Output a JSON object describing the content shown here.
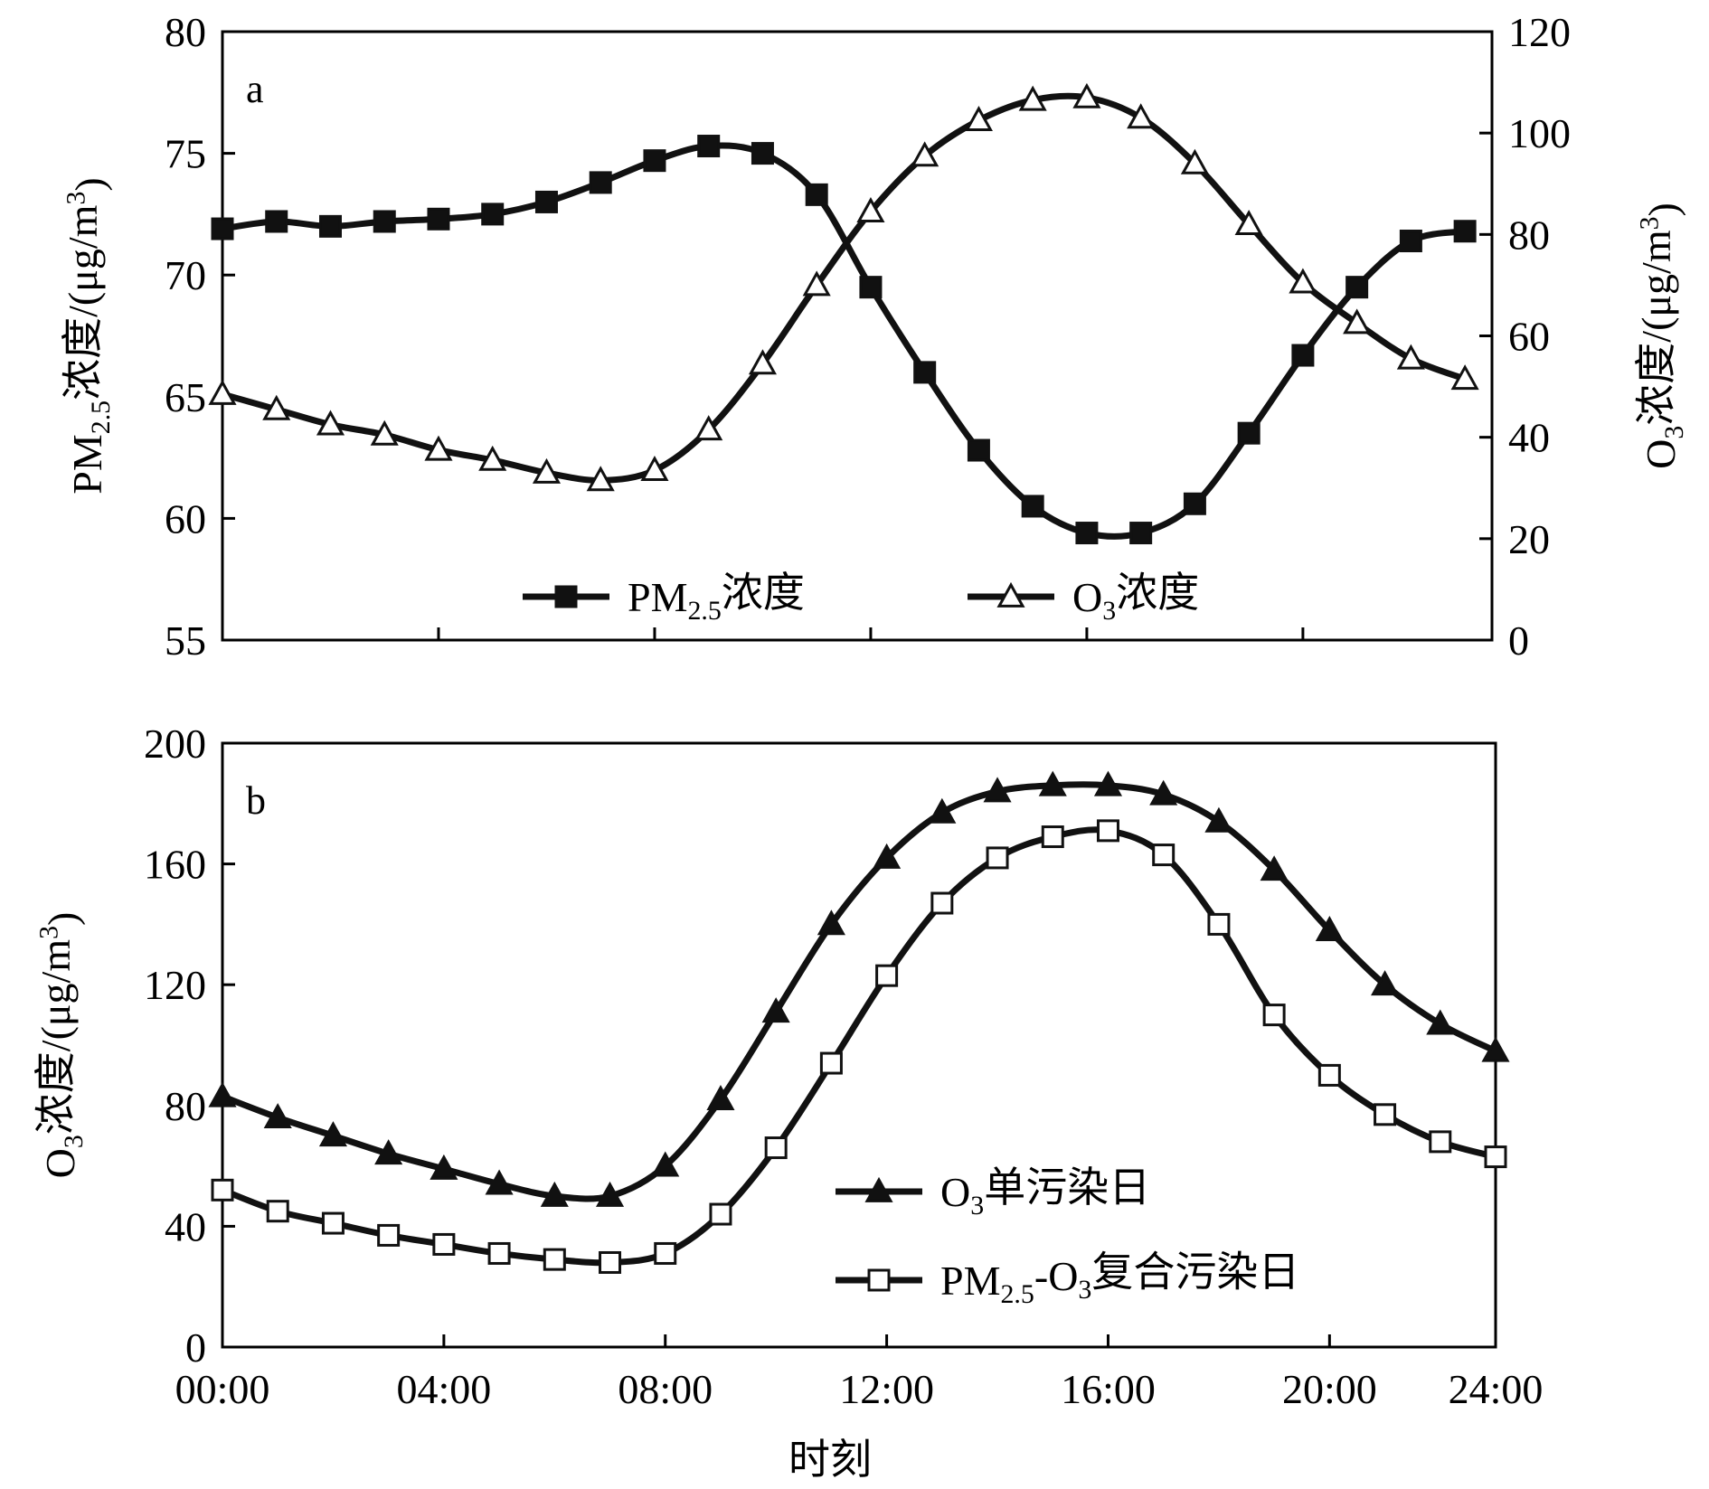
{
  "chart_data": [
    {
      "panel": "a",
      "type": "line",
      "x": [
        0,
        1,
        2,
        3,
        4,
        5,
        6,
        7,
        8,
        9,
        10,
        11,
        12,
        13,
        14,
        15,
        16,
        17,
        18,
        19,
        20,
        21,
        22,
        23
      ],
      "xlim": [
        0,
        23.5
      ],
      "xticks": [
        4,
        8,
        12,
        16,
        20
      ],
      "ylabel_left": "PM2.5浓度/(μg/m3)",
      "ylabel_right": "O3浓度/(μg/m3)",
      "ylim_left": [
        55,
        80
      ],
      "ylim_right": [
        0,
        120
      ],
      "yticks_left": [
        "55",
        "60",
        "65",
        "70",
        "75",
        "80"
      ],
      "yticks_right": [
        "0",
        "20",
        "40",
        "60",
        "80",
        "100",
        "120"
      ],
      "legend_position": "bottom-center",
      "grid": false,
      "series": [
        {
          "name": "PM2.5浓度",
          "axis": "left",
          "marker": "filled-square",
          "values": [
            71.9,
            72.2,
            72.0,
            72.2,
            72.3,
            72.5,
            73.0,
            73.8,
            74.7,
            75.3,
            75.0,
            73.3,
            69.5,
            66.0,
            62.8,
            60.5,
            59.4,
            59.4,
            60.6,
            63.5,
            66.7,
            69.5,
            71.4,
            71.8
          ]
        },
        {
          "name": "O3浓度",
          "axis": "right",
          "marker": "open-triangle",
          "values": [
            48.5,
            45.5,
            42.5,
            40.5,
            37.5,
            35.5,
            33.0,
            31.5,
            33.5,
            41.5,
            54.5,
            70.0,
            84.5,
            95.5,
            102.5,
            106.5,
            107.0,
            103.0,
            94.0,
            82.0,
            70.5,
            62.5,
            55.5,
            51.5
          ]
        }
      ]
    },
    {
      "panel": "b",
      "type": "line",
      "x": [
        0,
        1,
        2,
        3,
        4,
        5,
        6,
        7,
        8,
        9,
        10,
        11,
        12,
        13,
        14,
        15,
        16,
        17,
        18,
        19,
        20,
        21,
        22,
        23
      ],
      "xlim": [
        0,
        23
      ],
      "xticks": [
        0,
        4,
        8,
        12,
        16,
        20,
        23
      ],
      "xtick_labels": [
        "00:00",
        "04:00",
        "08:00",
        "12:00",
        "16:00",
        "20:00",
        "24:00"
      ],
      "xlabel": "时刻",
      "ylabel": "O3浓度/(μg/m3)",
      "ylim": [
        0,
        200
      ],
      "yticks": [
        "0",
        "40",
        "80",
        "120",
        "160",
        "200"
      ],
      "legend_position": "bottom-center",
      "grid": false,
      "series": [
        {
          "name": "O3单污染日",
          "marker": "filled-triangle",
          "values": [
            83,
            76,
            70,
            64,
            59,
            54,
            50,
            50,
            60,
            82,
            111,
            140,
            162,
            177,
            184,
            186,
            186,
            183,
            174,
            158,
            138,
            120,
            107,
            98
          ]
        },
        {
          "name": "PM2.5-O3复合污染日",
          "marker": "open-square",
          "values": [
            52,
            45,
            41,
            37,
            34,
            31,
            29,
            28,
            31,
            44,
            66,
            94,
            123,
            147,
            162,
            169,
            171,
            163,
            140,
            110,
            90,
            77,
            68,
            63
          ]
        }
      ]
    }
  ]
}
